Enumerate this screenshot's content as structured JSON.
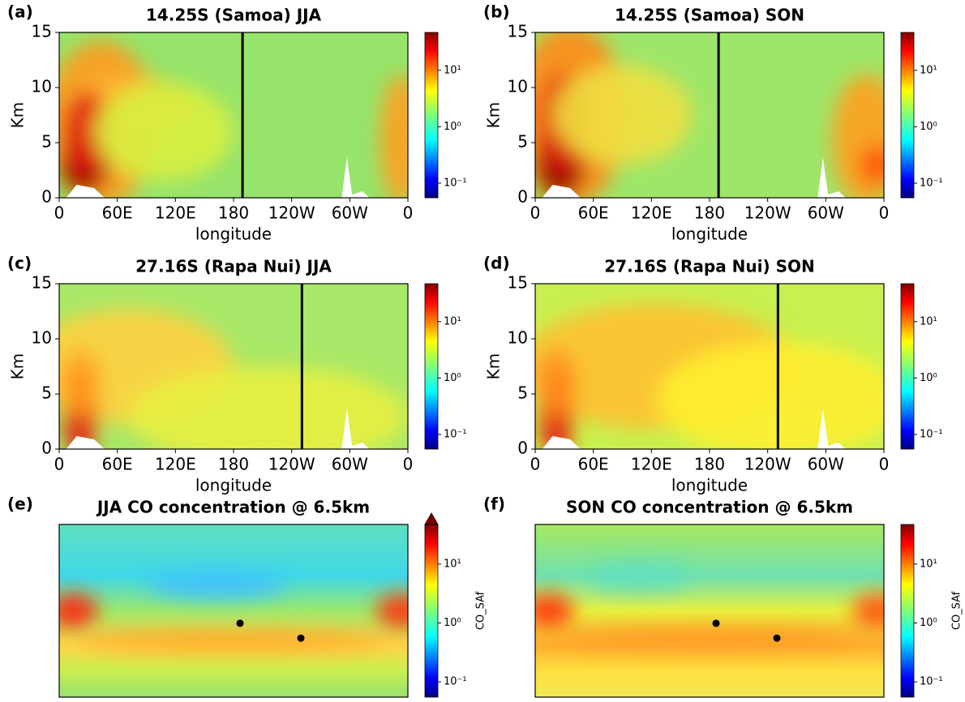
{
  "chart_data": [
    {
      "type": "heatmap",
      "label": "(a)",
      "title": "14.25S (Samoa) JJA",
      "xlabel": "longitude",
      "ylabel": "Km",
      "xlim": [
        0,
        360
      ],
      "xticks": [
        0,
        {
          "value": 60,
          "label": "60E"
        },
        {
          "value": 120,
          "label": "120E"
        },
        180,
        {
          "value": 240,
          "label": "120W"
        },
        {
          "value": 300,
          "label": "60W"
        },
        {
          "value": 360,
          "label": "0"
        }
      ],
      "ylim": [
        0,
        15
      ],
      "yticks": [
        0,
        5,
        10,
        15
      ],
      "site_lon": 189.3,
      "clim": [
        0.055,
        47
      ],
      "clog": true,
      "cticks": [
        {
          "value": 0.1,
          "label": "10⁻¹"
        },
        {
          "value": 1,
          "label": "10⁰"
        },
        {
          "value": 10,
          "label": "10¹"
        }
      ]
    },
    {
      "type": "heatmap",
      "label": "(b)",
      "title": "14.25S (Samoa) SON",
      "xlabel": "longitude",
      "ylabel": "Km",
      "xlim": [
        0,
        360
      ],
      "xticks": [
        0,
        {
          "value": 60,
          "label": "60E"
        },
        {
          "value": 120,
          "label": "120E"
        },
        180,
        {
          "value": 240,
          "label": "120W"
        },
        {
          "value": 300,
          "label": "60W"
        },
        {
          "value": 360,
          "label": "0"
        }
      ],
      "ylim": [
        0,
        15
      ],
      "yticks": [
        0,
        5,
        10,
        15
      ],
      "site_lon": 189.3,
      "clim": [
        0.055,
        47
      ],
      "clog": true,
      "cticks": [
        {
          "value": 0.1,
          "label": "10⁻¹"
        },
        {
          "value": 1,
          "label": "10⁰"
        },
        {
          "value": 10,
          "label": "10¹"
        }
      ]
    },
    {
      "type": "heatmap",
      "label": "(c)",
      "title": "27.16S (Rapa Nui) JJA",
      "xlabel": "longitude",
      "ylabel": "Km",
      "xlim": [
        0,
        360
      ],
      "xticks": [
        0,
        {
          "value": 60,
          "label": "60E"
        },
        {
          "value": 120,
          "label": "120E"
        },
        180,
        {
          "value": 240,
          "label": "120W"
        },
        {
          "value": 300,
          "label": "60W"
        },
        {
          "value": 360,
          "label": "0"
        }
      ],
      "ylim": [
        0,
        15
      ],
      "yticks": [
        0,
        5,
        10,
        15
      ],
      "site_lon": 250.6,
      "clim": [
        0.055,
        47
      ],
      "clog": true,
      "cticks": [
        {
          "value": 0.1,
          "label": "10⁻¹"
        },
        {
          "value": 1,
          "label": "10⁰"
        },
        {
          "value": 10,
          "label": "10¹"
        }
      ]
    },
    {
      "type": "heatmap",
      "label": "(d)",
      "title": "27.16S (Rapa Nui) SON",
      "xlabel": "longitude",
      "ylabel": "Km",
      "xlim": [
        0,
        360
      ],
      "xticks": [
        0,
        {
          "value": 60,
          "label": "60E"
        },
        {
          "value": 120,
          "label": "120E"
        },
        180,
        {
          "value": 240,
          "label": "120W"
        },
        {
          "value": 300,
          "label": "60W"
        },
        {
          "value": 360,
          "label": "0"
        }
      ],
      "ylim": [
        0,
        15
      ],
      "yticks": [
        0,
        5,
        10,
        15
      ],
      "site_lon": 250.6,
      "clim": [
        0.055,
        47
      ],
      "clog": true,
      "cticks": [
        {
          "value": 0.1,
          "label": "10⁻¹"
        },
        {
          "value": 1,
          "label": "10⁰"
        },
        {
          "value": 10,
          "label": "10¹"
        }
      ]
    },
    {
      "type": "map",
      "label": "(e)",
      "title": "JJA CO concentration @ 6.5km",
      "colorbar_label": "CO_SAf",
      "xlim": [
        0,
        360
      ],
      "ylim": [
        -90,
        90
      ],
      "sites": {
        "lon": [
          186.7,
          249.5
        ],
        "lat": [
          -13,
          -28.5
        ]
      },
      "extend_max": true,
      "clim": [
        0.055,
        47
      ],
      "clog": true,
      "cticks": [
        {
          "value": 0.1,
          "label": "10⁻¹"
        },
        {
          "value": 1,
          "label": "10⁰"
        },
        {
          "value": 10,
          "label": "10¹"
        }
      ]
    },
    {
      "type": "map",
      "label": "(f)",
      "title": "SON CO concentration @ 6.5km",
      "colorbar_label": "CO_SAf",
      "xlim": [
        0,
        360
      ],
      "ylim": [
        -90,
        90
      ],
      "sites": {
        "lon": [
          186.7,
          249.5
        ],
        "lat": [
          -13,
          -28.5
        ]
      },
      "extend_max": false,
      "clim": [
        0.055,
        47
      ],
      "clog": true,
      "cticks": [
        {
          "value": 0.1,
          "label": "10⁻¹"
        },
        {
          "value": 1,
          "label": "10⁰"
        },
        {
          "value": 10,
          "label": "10¹"
        }
      ]
    }
  ]
}
